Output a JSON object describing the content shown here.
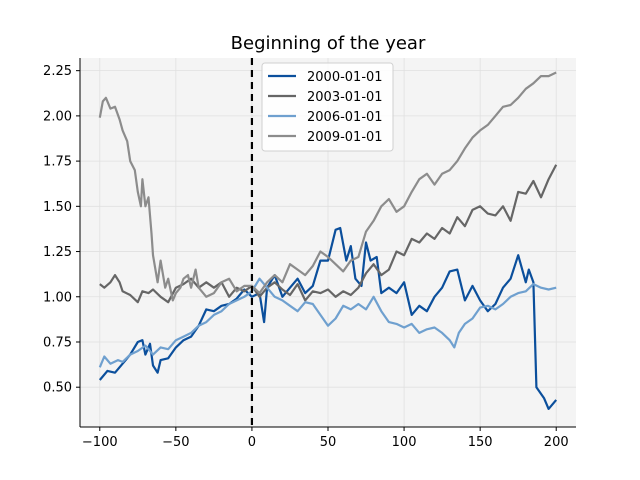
{
  "chart_data": {
    "type": "line",
    "title": "Beginning of the year",
    "xlabel": "",
    "ylabel": "",
    "xlim": [
      -113,
      213
    ],
    "ylim": [
      0.28,
      2.32
    ],
    "xticks": [
      -100,
      -50,
      0,
      50,
      100,
      150,
      200
    ],
    "xtick_labels": [
      "−100",
      "−50",
      "0",
      "50",
      "100",
      "150",
      "200"
    ],
    "yticks": [
      0.5,
      0.75,
      1.0,
      1.25,
      1.5,
      1.75,
      2.0,
      2.25
    ],
    "ytick_labels": [
      "0.50",
      "0.75",
      "1.00",
      "1.25",
      "1.50",
      "1.75",
      "2.00",
      "2.25"
    ],
    "grid": true,
    "legend": "top-center",
    "vline": {
      "x": 0,
      "style": "dashed",
      "color": "#000000"
    },
    "series": [
      {
        "name": "2000-01-01",
        "color": "#0b4f9c",
        "points": [
          [
            -100,
            0.54
          ],
          [
            -95,
            0.59
          ],
          [
            -90,
            0.58
          ],
          [
            -85,
            0.63
          ],
          [
            -80,
            0.68
          ],
          [
            -75,
            0.75
          ],
          [
            -72,
            0.76
          ],
          [
            -70,
            0.68
          ],
          [
            -67,
            0.74
          ],
          [
            -65,
            0.62
          ],
          [
            -62,
            0.58
          ],
          [
            -60,
            0.65
          ],
          [
            -55,
            0.66
          ],
          [
            -50,
            0.72
          ],
          [
            -45,
            0.76
          ],
          [
            -40,
            0.78
          ],
          [
            -35,
            0.84
          ],
          [
            -30,
            0.93
          ],
          [
            -25,
            0.92
          ],
          [
            -20,
            0.95
          ],
          [
            -15,
            0.96
          ],
          [
            -10,
            0.99
          ],
          [
            -5,
            1.04
          ],
          [
            0,
            1.0
          ],
          [
            5,
            1.02
          ],
          [
            8,
            0.86
          ],
          [
            10,
            1.05
          ],
          [
            15,
            1.12
          ],
          [
            20,
            1.0
          ],
          [
            25,
            1.05
          ],
          [
            30,
            1.1
          ],
          [
            35,
            1.02
          ],
          [
            40,
            1.06
          ],
          [
            45,
            1.2
          ],
          [
            50,
            1.2
          ],
          [
            55,
            1.37
          ],
          [
            58,
            1.38
          ],
          [
            62,
            1.2
          ],
          [
            65,
            1.28
          ],
          [
            68,
            1.1
          ],
          [
            72,
            1.06
          ],
          [
            75,
            1.3
          ],
          [
            78,
            1.2
          ],
          [
            82,
            1.22
          ],
          [
            85,
            1.02
          ],
          [
            90,
            1.05
          ],
          [
            95,
            1.02
          ],
          [
            100,
            1.08
          ],
          [
            105,
            0.9
          ],
          [
            110,
            0.95
          ],
          [
            115,
            0.92
          ],
          [
            120,
            1.0
          ],
          [
            125,
            1.05
          ],
          [
            130,
            1.14
          ],
          [
            135,
            1.15
          ],
          [
            140,
            0.98
          ],
          [
            145,
            1.06
          ],
          [
            150,
            0.98
          ],
          [
            155,
            0.92
          ],
          [
            160,
            0.96
          ],
          [
            165,
            1.05
          ],
          [
            170,
            1.1
          ],
          [
            175,
            1.23
          ],
          [
            180,
            1.08
          ],
          [
            182,
            1.15
          ],
          [
            185,
            1.08
          ],
          [
            187,
            0.5
          ],
          [
            192,
            0.44
          ],
          [
            195,
            0.38
          ],
          [
            200,
            0.43
          ]
        ]
      },
      {
        "name": "2003-01-01",
        "color": "#666666",
        "points": [
          [
            -100,
            1.07
          ],
          [
            -97,
            1.05
          ],
          [
            -93,
            1.08
          ],
          [
            -90,
            1.12
          ],
          [
            -87,
            1.08
          ],
          [
            -85,
            1.03
          ],
          [
            -80,
            1.01
          ],
          [
            -75,
            0.97
          ],
          [
            -72,
            1.03
          ],
          [
            -68,
            1.02
          ],
          [
            -65,
            1.04
          ],
          [
            -60,
            1.0
          ],
          [
            -55,
            0.97
          ],
          [
            -50,
            1.05
          ],
          [
            -45,
            1.07
          ],
          [
            -40,
            1.1
          ],
          [
            -35,
            1.05
          ],
          [
            -30,
            1.08
          ],
          [
            -25,
            1.05
          ],
          [
            -20,
            1.08
          ],
          [
            -15,
            1.0
          ],
          [
            -10,
            1.05
          ],
          [
            -5,
            1.03
          ],
          [
            0,
            1.06
          ],
          [
            5,
            1.0
          ],
          [
            10,
            1.05
          ],
          [
            15,
            1.08
          ],
          [
            20,
            1.04
          ],
          [
            25,
            1.01
          ],
          [
            30,
            1.07
          ],
          [
            35,
            0.98
          ],
          [
            40,
            1.03
          ],
          [
            45,
            1.02
          ],
          [
            50,
            1.04
          ],
          [
            55,
            1.0
          ],
          [
            60,
            1.03
          ],
          [
            65,
            1.01
          ],
          [
            70,
            1.05
          ],
          [
            75,
            1.13
          ],
          [
            80,
            1.18
          ],
          [
            85,
            1.12
          ],
          [
            90,
            1.15
          ],
          [
            95,
            1.25
          ],
          [
            100,
            1.23
          ],
          [
            105,
            1.32
          ],
          [
            110,
            1.3
          ],
          [
            115,
            1.35
          ],
          [
            120,
            1.32
          ],
          [
            125,
            1.38
          ],
          [
            130,
            1.35
          ],
          [
            135,
            1.44
          ],
          [
            140,
            1.39
          ],
          [
            145,
            1.48
          ],
          [
            150,
            1.5
          ],
          [
            155,
            1.46
          ],
          [
            160,
            1.45
          ],
          [
            165,
            1.5
          ],
          [
            170,
            1.42
          ],
          [
            175,
            1.58
          ],
          [
            180,
            1.57
          ],
          [
            185,
            1.64
          ],
          [
            190,
            1.55
          ],
          [
            195,
            1.65
          ],
          [
            200,
            1.73
          ]
        ]
      },
      {
        "name": "2006-01-01",
        "color": "#6fa0cf",
        "points": [
          [
            -100,
            0.61
          ],
          [
            -97,
            0.67
          ],
          [
            -93,
            0.63
          ],
          [
            -88,
            0.65
          ],
          [
            -85,
            0.64
          ],
          [
            -80,
            0.68
          ],
          [
            -75,
            0.7
          ],
          [
            -70,
            0.73
          ],
          [
            -65,
            0.68
          ],
          [
            -60,
            0.72
          ],
          [
            -55,
            0.71
          ],
          [
            -50,
            0.76
          ],
          [
            -45,
            0.78
          ],
          [
            -40,
            0.8
          ],
          [
            -35,
            0.84
          ],
          [
            -30,
            0.86
          ],
          [
            -25,
            0.9
          ],
          [
            -20,
            0.92
          ],
          [
            -15,
            0.96
          ],
          [
            -10,
            0.98
          ],
          [
            -5,
            1.0
          ],
          [
            0,
            1.03
          ],
          [
            5,
            1.1
          ],
          [
            10,
            1.05
          ],
          [
            15,
            1.0
          ],
          [
            20,
            0.98
          ],
          [
            25,
            0.95
          ],
          [
            30,
            0.92
          ],
          [
            35,
            0.97
          ],
          [
            40,
            0.96
          ],
          [
            45,
            0.9
          ],
          [
            50,
            0.84
          ],
          [
            55,
            0.88
          ],
          [
            60,
            0.95
          ],
          [
            65,
            0.93
          ],
          [
            70,
            0.96
          ],
          [
            75,
            0.93
          ],
          [
            80,
            1.0
          ],
          [
            85,
            0.92
          ],
          [
            90,
            0.86
          ],
          [
            95,
            0.85
          ],
          [
            100,
            0.83
          ],
          [
            105,
            0.85
          ],
          [
            110,
            0.8
          ],
          [
            115,
            0.82
          ],
          [
            120,
            0.83
          ],
          [
            125,
            0.8
          ],
          [
            130,
            0.76
          ],
          [
            133,
            0.72
          ],
          [
            136,
            0.8
          ],
          [
            140,
            0.85
          ],
          [
            145,
            0.88
          ],
          [
            150,
            0.94
          ],
          [
            155,
            0.95
          ],
          [
            160,
            0.93
          ],
          [
            165,
            0.96
          ],
          [
            170,
            1.0
          ],
          [
            175,
            1.02
          ],
          [
            180,
            1.03
          ],
          [
            185,
            1.07
          ],
          [
            190,
            1.05
          ],
          [
            195,
            1.04
          ],
          [
            200,
            1.05
          ]
        ]
      },
      {
        "name": "2009-01-01",
        "color": "#8c8c8c",
        "points": [
          [
            -100,
            1.99
          ],
          [
            -98,
            2.08
          ],
          [
            -96,
            2.1
          ],
          [
            -93,
            2.04
          ],
          [
            -90,
            2.05
          ],
          [
            -87,
            1.98
          ],
          [
            -85,
            1.92
          ],
          [
            -82,
            1.86
          ],
          [
            -80,
            1.75
          ],
          [
            -77,
            1.7
          ],
          [
            -75,
            1.58
          ],
          [
            -73,
            1.5
          ],
          [
            -72,
            1.65
          ],
          [
            -70,
            1.5
          ],
          [
            -68,
            1.55
          ],
          [
            -66,
            1.35
          ],
          [
            -65,
            1.23
          ],
          [
            -62,
            1.08
          ],
          [
            -60,
            1.2
          ],
          [
            -57,
            1.05
          ],
          [
            -55,
            1.1
          ],
          [
            -52,
            0.98
          ],
          [
            -50,
            1.02
          ],
          [
            -47,
            1.05
          ],
          [
            -45,
            1.1
          ],
          [
            -42,
            1.12
          ],
          [
            -40,
            1.05
          ],
          [
            -37,
            1.15
          ],
          [
            -35,
            1.05
          ],
          [
            -30,
            1.0
          ],
          [
            -25,
            1.02
          ],
          [
            -20,
            1.08
          ],
          [
            -15,
            1.1
          ],
          [
            -10,
            1.03
          ],
          [
            -5,
            1.06
          ],
          [
            0,
            1.06
          ],
          [
            5,
            1.02
          ],
          [
            10,
            1.08
          ],
          [
            15,
            1.12
          ],
          [
            20,
            1.08
          ],
          [
            25,
            1.18
          ],
          [
            30,
            1.15
          ],
          [
            35,
            1.12
          ],
          [
            40,
            1.17
          ],
          [
            45,
            1.25
          ],
          [
            50,
            1.22
          ],
          [
            55,
            1.18
          ],
          [
            60,
            1.14
          ],
          [
            65,
            1.2
          ],
          [
            70,
            1.22
          ],
          [
            75,
            1.36
          ],
          [
            80,
            1.42
          ],
          [
            85,
            1.5
          ],
          [
            90,
            1.54
          ],
          [
            95,
            1.47
          ],
          [
            100,
            1.5
          ],
          [
            105,
            1.58
          ],
          [
            110,
            1.65
          ],
          [
            115,
            1.68
          ],
          [
            120,
            1.62
          ],
          [
            125,
            1.68
          ],
          [
            130,
            1.7
          ],
          [
            135,
            1.75
          ],
          [
            140,
            1.82
          ],
          [
            145,
            1.88
          ],
          [
            150,
            1.92
          ],
          [
            155,
            1.95
          ],
          [
            160,
            2.0
          ],
          [
            165,
            2.05
          ],
          [
            170,
            2.06
          ],
          [
            175,
            2.1
          ],
          [
            180,
            2.15
          ],
          [
            185,
            2.18
          ],
          [
            190,
            2.22
          ],
          [
            195,
            2.22
          ],
          [
            200,
            2.24
          ]
        ]
      }
    ]
  }
}
